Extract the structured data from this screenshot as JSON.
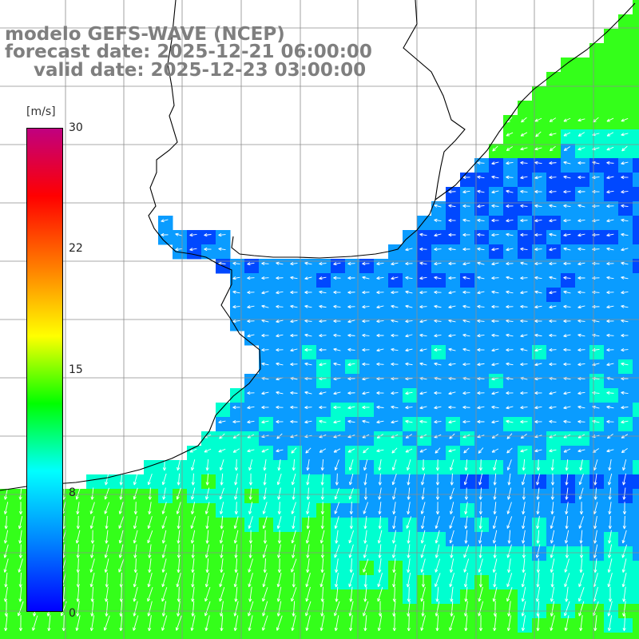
{
  "title": {
    "line1": "modelo GEFS-WAVE (NCEP)",
    "line2": "forecast date: 2025-12-21 06:00:00",
    "line3": "valid date: 2025-12-23 03:00:00"
  },
  "colorbar": {
    "unit": "[m/s]",
    "min": 0,
    "max": 30,
    "ticks": [
      "30",
      "22",
      "15",
      "8",
      "0"
    ],
    "tick_values": [
      30,
      22,
      15,
      8,
      0
    ],
    "colors": [
      "#0000ff",
      "#0080ff",
      "#00ffff",
      "#00ff00",
      "#ffff00",
      "#ff8000",
      "#ff0000",
      "#c00080"
    ]
  },
  "map": {
    "land_color": "#ffffff",
    "grid_color": "#8c8c8c",
    "coastline_color": "#000000",
    "arrow_color": "#ffffff",
    "field_colors": {
      "low": "#0048ff",
      "mid": "#0a9cff",
      "high": "#00ffd0",
      "green": "#34ff1a"
    }
  }
}
